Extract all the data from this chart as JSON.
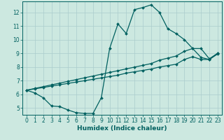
{
  "title": "",
  "xlabel": "Humidex (Indice chaleur)",
  "xlim": [
    -0.5,
    23.5
  ],
  "ylim": [
    4.5,
    12.8
  ],
  "yticks": [
    5,
    6,
    7,
    8,
    9,
    10,
    11,
    12
  ],
  "xticks": [
    0,
    1,
    2,
    3,
    4,
    5,
    6,
    7,
    8,
    9,
    10,
    11,
    12,
    13,
    14,
    15,
    16,
    17,
    18,
    19,
    20,
    21,
    22,
    23
  ],
  "background_color": "#cce8e0",
  "grid_color": "#aacccc",
  "line_color": "#006060",
  "line1_x": [
    0,
    1,
    2,
    3,
    4,
    5,
    6,
    7,
    8,
    9,
    10,
    11,
    12,
    13,
    14,
    15,
    16,
    17,
    18,
    19,
    20,
    21,
    22,
    23
  ],
  "line1_y": [
    6.3,
    6.1,
    5.75,
    5.15,
    5.1,
    4.85,
    4.65,
    4.6,
    4.6,
    5.75,
    9.35,
    11.15,
    10.45,
    12.2,
    12.35,
    12.55,
    12.0,
    10.8,
    10.45,
    10.0,
    9.35,
    9.35,
    8.6,
    9.0
  ],
  "line2_x": [
    0,
    1,
    2,
    3,
    4,
    5,
    6,
    7,
    8,
    9,
    10,
    11,
    12,
    13,
    14,
    15,
    16,
    17,
    18,
    19,
    20,
    21,
    22,
    23
  ],
  "line2_y": [
    6.3,
    6.43,
    6.56,
    6.69,
    6.82,
    6.95,
    7.08,
    7.21,
    7.34,
    7.47,
    7.6,
    7.73,
    7.86,
    7.99,
    8.12,
    8.25,
    8.5,
    8.65,
    8.8,
    9.15,
    9.35,
    8.7,
    8.55,
    9.0
  ],
  "line3_x": [
    0,
    1,
    2,
    3,
    4,
    5,
    6,
    7,
    8,
    9,
    10,
    11,
    12,
    13,
    14,
    15,
    16,
    17,
    18,
    19,
    20,
    21,
    22,
    23
  ],
  "line3_y": [
    6.3,
    6.4,
    6.5,
    6.6,
    6.7,
    6.8,
    6.9,
    7.0,
    7.1,
    7.2,
    7.3,
    7.4,
    7.55,
    7.65,
    7.75,
    7.85,
    8.0,
    8.1,
    8.2,
    8.55,
    8.75,
    8.55,
    8.55,
    8.95
  ],
  "marker": "D",
  "markersize": 2.0,
  "linewidth": 0.9,
  "tick_fontsize": 5.5,
  "xlabel_fontsize": 6.5
}
